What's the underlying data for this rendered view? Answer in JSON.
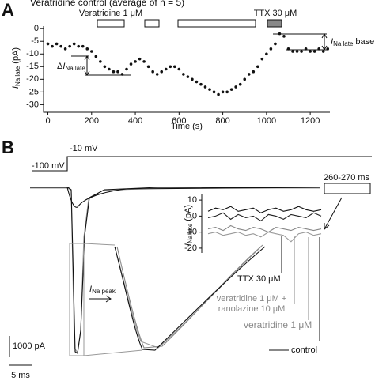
{
  "panel_a": {
    "label": "A"
  },
  "panel_b": {
    "label": "B",
    "step_label": "-10 mV",
    "holding_label": "-100 mV",
    "window_label": "260-270 ms",
    "peak_label": {
      "symbol": "I",
      "subscript": "Na peak"
    },
    "scale_current": "1000 pA",
    "scale_time": "5 ms"
  },
  "chart_data": [
    {
      "type": "scatter",
      "title": "Veratridine control (average of n = 5)",
      "color": "#111111",
      "x_label": "Time (s)",
      "y_label": {
        "symbol": "I",
        "subscript": "Na late",
        "unit": "(pA)"
      },
      "annotations": {
        "treatment": "Veratridine 1 μM",
        "ttx": "TTX 30 μM",
        "delta": {
          "prefix": "Δ",
          "symbol": "I",
          "subscript": "Na late"
        },
        "base": {
          "symbol": "I",
          "subscript": "Na late",
          "suffix": "base"
        }
      },
      "x": [
        0,
        20,
        40,
        60,
        80,
        100,
        120,
        140,
        160,
        180,
        200,
        220,
        240,
        260,
        280,
        300,
        320,
        340,
        360,
        380,
        400,
        420,
        440,
        460,
        480,
        500,
        520,
        540,
        560,
        580,
        600,
        620,
        640,
        660,
        680,
        700,
        720,
        740,
        760,
        780,
        800,
        820,
        840,
        860,
        880,
        900,
        920,
        940,
        960,
        980,
        1000,
        1020,
        1040,
        1060,
        1080,
        1100,
        1120,
        1140,
        1160,
        1180,
        1200,
        1220,
        1240,
        1260,
        1280
      ],
      "values": [
        -6,
        -7,
        -6,
        -7,
        -8,
        -7,
        -6,
        -7,
        -7,
        -8,
        -9,
        -11,
        -13,
        -15,
        -16,
        -17,
        -17,
        -18,
        -16,
        -14,
        -13,
        -12,
        -13,
        -15,
        -17,
        -18,
        -17,
        -16,
        -15,
        -15,
        -16,
        -18,
        -19,
        -20,
        -21,
        -22,
        -23,
        -24,
        -25,
        -26,
        -25,
        -25,
        -24,
        -23,
        -22,
        -20,
        -18,
        -17,
        -15,
        -12,
        -10,
        -8,
        -6,
        -2,
        -3,
        -8,
        -9,
        -9,
        -9,
        -8,
        -9,
        -9,
        -8,
        -9,
        -8
      ],
      "xlim": [
        -20,
        1290
      ],
      "xticks": [
        0,
        200,
        400,
        600,
        800,
        1000,
        1200
      ],
      "ylim": [
        -33,
        1
      ],
      "yticks": [
        0,
        -5,
        -10,
        -15,
        -20,
        -25,
        -30
      ]
    },
    {
      "type": "line",
      "y_label": {
        "symbol": "I",
        "subscript": "Na late",
        "unit": "(pA)"
      },
      "categories": [
        null,
        null,
        null,
        null,
        null,
        null,
        null,
        null,
        null,
        null,
        null,
        null,
        null,
        null,
        null,
        null
      ],
      "series": [
        {
          "name": "TTX 30 μM",
          "color": "#111111",
          "values": [
            3,
            5,
            4,
            6,
            3,
            4,
            5,
            2,
            4,
            5,
            3,
            4,
            6,
            4,
            3,
            4
          ]
        },
        {
          "name": "control",
          "color": "#222222",
          "values": [
            -1,
            0,
            2,
            -2,
            1,
            -1,
            0,
            -3,
            1,
            0,
            -2,
            1,
            0,
            -1,
            2,
            0
          ]
        },
        {
          "name": "veratridine 1 μM + ranolazine 10 μM",
          "color": "#888888",
          "values": [
            -8,
            -7,
            -9,
            -6,
            -8,
            -9,
            -7,
            -8,
            -10,
            -7,
            -8,
            -9,
            -7,
            -8,
            -9,
            -8
          ]
        },
        {
          "name": "veratridine 1 μM",
          "color": "#9a9a9a",
          "values": [
            -11,
            -10,
            -12,
            -11,
            -10,
            -12,
            -11,
            -13,
            -10,
            -11,
            -12,
            -16,
            -11,
            -10,
            -12,
            -11
          ]
        }
      ],
      "ylim": [
        -23,
        14
      ],
      "yticks": [
        10,
        0,
        -10,
        -20
      ]
    }
  ]
}
